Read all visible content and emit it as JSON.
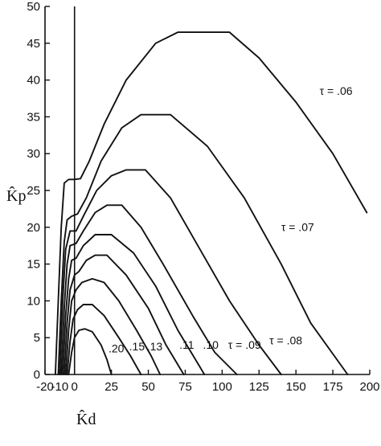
{
  "chart_data": {
    "type": "line",
    "xlabel": "K̂d",
    "ylabel": "K̂p",
    "xlim": [
      -20,
      200
    ],
    "ylim": [
      0,
      50
    ],
    "x_ticks": [
      -20,
      -10,
      0,
      25,
      50,
      75,
      100,
      125,
      150,
      175,
      200
    ],
    "x_tick_labels": [
      "-20",
      "-10",
      "0",
      "25",
      "50",
      "75",
      "100",
      "125",
      "150",
      "175",
      "200"
    ],
    "y_ticks": [
      0,
      5,
      10,
      15,
      20,
      25,
      30,
      35,
      40,
      45,
      50
    ],
    "y_tick_labels": [
      "0",
      "5",
      "10",
      "15",
      "20",
      "25",
      "30",
      "35",
      "40",
      "45",
      "50"
    ],
    "grid": false,
    "series": [
      {
        "name": "τ = .06",
        "points": [
          [
            -13,
            0
          ],
          [
            -11,
            10
          ],
          [
            -9,
            20
          ],
          [
            -7,
            26
          ],
          [
            -4,
            26.5
          ],
          [
            0,
            26.5
          ],
          [
            4,
            26.6
          ],
          [
            10,
            29
          ],
          [
            20,
            34
          ],
          [
            35,
            40
          ],
          [
            55,
            45
          ],
          [
            70,
            46.5
          ],
          [
            105,
            46.5
          ],
          [
            125,
            43
          ],
          [
            150,
            37
          ],
          [
            175,
            30
          ],
          [
            198,
            22
          ]
        ]
      },
      {
        "name": "τ = .07",
        "points": [
          [
            -11,
            0
          ],
          [
            -9,
            10
          ],
          [
            -7,
            18
          ],
          [
            -5,
            21
          ],
          [
            -2,
            21.5
          ],
          [
            2,
            21.8
          ],
          [
            8,
            24
          ],
          [
            18,
            29
          ],
          [
            32,
            33.5
          ],
          [
            45,
            35.3
          ],
          [
            65,
            35.3
          ],
          [
            90,
            31
          ],
          [
            115,
            24
          ],
          [
            140,
            15
          ],
          [
            160,
            7
          ],
          [
            185,
            0
          ]
        ]
      },
      {
        "name": "τ = .08",
        "points": [
          [
            -10,
            0
          ],
          [
            -8,
            10
          ],
          [
            -6,
            17
          ],
          [
            -3,
            19.5
          ],
          [
            1,
            19.5
          ],
          [
            6,
            21.5
          ],
          [
            15,
            25
          ],
          [
            25,
            27
          ],
          [
            35,
            27.8
          ],
          [
            48,
            27.8
          ],
          [
            65,
            24
          ],
          [
            85,
            17
          ],
          [
            105,
            10
          ],
          [
            125,
            4
          ],
          [
            140,
            0
          ]
        ]
      },
      {
        "name": "τ = .09",
        "points": [
          [
            -9,
            0
          ],
          [
            -7,
            9
          ],
          [
            -5,
            15
          ],
          [
            -3,
            17.5
          ],
          [
            1,
            17.8
          ],
          [
            6,
            19.5
          ],
          [
            14,
            22
          ],
          [
            22,
            23
          ],
          [
            32,
            23
          ],
          [
            45,
            20
          ],
          [
            60,
            15
          ],
          [
            80,
            8
          ],
          [
            95,
            3
          ],
          [
            110,
            0
          ]
        ]
      },
      {
        "name": ".10",
        "points": [
          [
            -8,
            0
          ],
          [
            -6,
            8
          ],
          [
            -4,
            13
          ],
          [
            -2,
            15.5
          ],
          [
            1,
            15.8
          ],
          [
            6,
            17.5
          ],
          [
            14,
            19
          ],
          [
            25,
            19
          ],
          [
            40,
            16.5
          ],
          [
            55,
            12
          ],
          [
            70,
            6
          ],
          [
            85,
            1
          ],
          [
            88,
            0
          ]
        ]
      },
      {
        "name": ".11",
        "points": [
          [
            -7,
            0
          ],
          [
            -5,
            7
          ],
          [
            -3,
            11.5
          ],
          [
            0,
            13.5
          ],
          [
            3,
            14
          ],
          [
            8,
            15.5
          ],
          [
            14,
            16.2
          ],
          [
            22,
            16.2
          ],
          [
            35,
            13.5
          ],
          [
            50,
            9
          ],
          [
            62,
            4
          ],
          [
            74,
            0
          ]
        ]
      },
      {
        "name": ".13",
        "points": [
          [
            -6,
            0
          ],
          [
            -4,
            6
          ],
          [
            -2,
            10
          ],
          [
            1,
            11.5
          ],
          [
            5,
            12.5
          ],
          [
            12,
            13
          ],
          [
            20,
            12.5
          ],
          [
            30,
            10
          ],
          [
            42,
            6
          ],
          [
            52,
            2.5
          ],
          [
            58,
            0
          ]
        ]
      },
      {
        "name": ".15",
        "points": [
          [
            -5,
            0
          ],
          [
            -3,
            4.5
          ],
          [
            -1,
            7.5
          ],
          [
            2,
            8.8
          ],
          [
            6,
            9.5
          ],
          [
            12,
            9.5
          ],
          [
            20,
            8
          ],
          [
            30,
            5
          ],
          [
            38,
            2.5
          ],
          [
            45,
            0
          ]
        ]
      },
      {
        "name": ".20",
        "points": [
          [
            -4,
            0
          ],
          [
            -2,
            3
          ],
          [
            0,
            5
          ],
          [
            3,
            6
          ],
          [
            7,
            6.2
          ],
          [
            12,
            5.8
          ],
          [
            18,
            4
          ],
          [
            22,
            2
          ],
          [
            25,
            0
          ]
        ]
      }
    ],
    "annotations": [
      {
        "text": "τ = .06",
        "x": 166,
        "y": 38
      },
      {
        "text": "τ = .07",
        "x": 140,
        "y": 19.5
      },
      {
        "text": "τ = .08",
        "x": 132,
        "y": 4.1
      },
      {
        "text": "τ = .09",
        "x": 104,
        "y": 3.5
      },
      {
        "text": ".10",
        "x": 87,
        "y": 3.5
      },
      {
        "text": ".11",
        "x": 71,
        "y": 3.5
      },
      {
        "text": ".13",
        "x": 49,
        "y": 3.3
      },
      {
        "text": ".15",
        "x": 37,
        "y": 3.3
      },
      {
        "text": ".20",
        "x": 23,
        "y": 3.0
      }
    ]
  }
}
